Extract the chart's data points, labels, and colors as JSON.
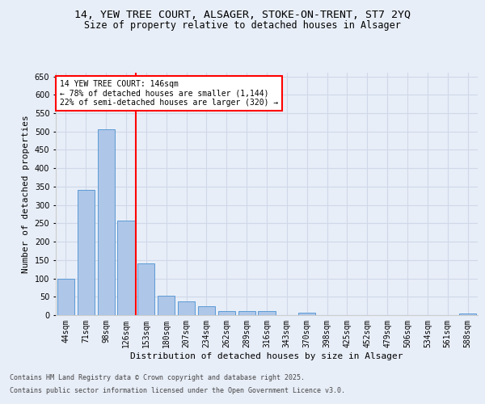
{
  "title_line1": "14, YEW TREE COURT, ALSAGER, STOKE-ON-TRENT, ST7 2YQ",
  "title_line2": "Size of property relative to detached houses in Alsager",
  "xlabel": "Distribution of detached houses by size in Alsager",
  "ylabel": "Number of detached properties",
  "categories": [
    "44sqm",
    "71sqm",
    "98sqm",
    "126sqm",
    "153sqm",
    "180sqm",
    "207sqm",
    "234sqm",
    "262sqm",
    "289sqm",
    "316sqm",
    "343sqm",
    "370sqm",
    "398sqm",
    "425sqm",
    "452sqm",
    "479sqm",
    "506sqm",
    "534sqm",
    "561sqm",
    "588sqm"
  ],
  "values": [
    100,
    340,
    507,
    257,
    140,
    53,
    37,
    25,
    10,
    11,
    10,
    0,
    6,
    0,
    0,
    0,
    0,
    0,
    0,
    0,
    5
  ],
  "bar_color": "#aec6e8",
  "bar_edge_color": "#5b9bd5",
  "vline_color": "red",
  "annotation_text": "14 YEW TREE COURT: 146sqm\n← 78% of detached houses are smaller (1,144)\n22% of semi-detached houses are larger (320) →",
  "annotation_box_color": "white",
  "annotation_box_edge": "red",
  "ylim": [
    0,
    660
  ],
  "yticks": [
    0,
    50,
    100,
    150,
    200,
    250,
    300,
    350,
    400,
    450,
    500,
    550,
    600,
    650
  ],
  "grid_color": "#d0d8e8",
  "background_color": "#e8eef8",
  "footer_line1": "Contains HM Land Registry data © Crown copyright and database right 2025.",
  "footer_line2": "Contains public sector information licensed under the Open Government Licence v3.0.",
  "title_fontsize": 9.5,
  "subtitle_fontsize": 8.5,
  "tick_fontsize": 7,
  "label_fontsize": 8,
  "annotation_fontsize": 7,
  "footer_fontsize": 6
}
